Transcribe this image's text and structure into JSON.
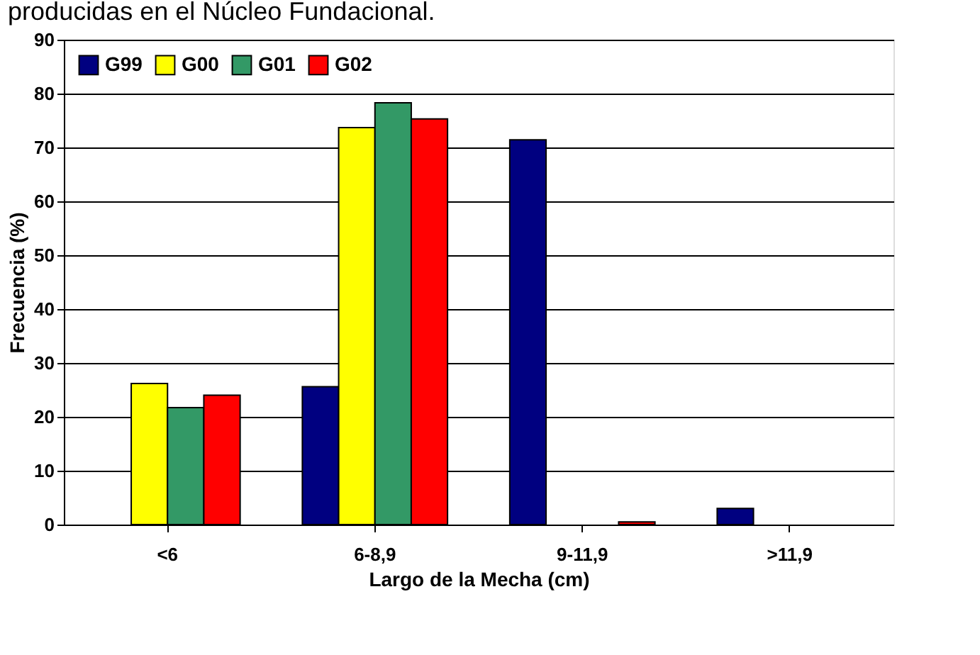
{
  "chart_data": {
    "type": "bar",
    "title": "producidas en el Núcleo Fundacional.",
    "categories": [
      "<6",
      "6-8,9",
      "9-11,9",
      ">11,9"
    ],
    "series": [
      {
        "name": "G99",
        "color": "#000080",
        "values": [
          null,
          25.6,
          71.4,
          3.0
        ]
      },
      {
        "name": "G00",
        "color": "#ffff00",
        "values": [
          26.2,
          73.7,
          null,
          null
        ]
      },
      {
        "name": "G01",
        "color": "#339966",
        "values": [
          21.7,
          78.3,
          null,
          null
        ]
      },
      {
        "name": "G02",
        "color": "#ff0000",
        "values": [
          24.0,
          75.3,
          0.5,
          null
        ]
      }
    ],
    "xlabel": "Largo de la Mecha (cm)",
    "ylabel": "Frecuencia (%)",
    "ylim": [
      0,
      90
    ],
    "yticks": [
      0,
      10,
      20,
      30,
      40,
      50,
      60,
      70,
      80,
      90
    ],
    "grid": "y",
    "legend": "top left"
  }
}
